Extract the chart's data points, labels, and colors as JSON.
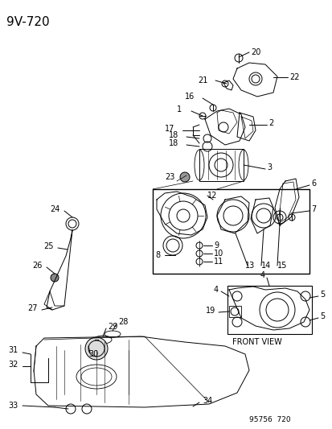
{
  "title": "9V-720",
  "footer": "95756  720",
  "bg_color": "#f5f5f0",
  "title_fontsize": 11,
  "label_fontsize": 7,
  "front_view_text": "FRONT VIEW"
}
